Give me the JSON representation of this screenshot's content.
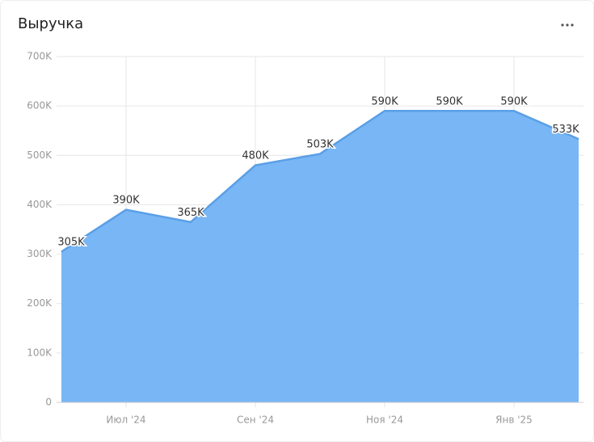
{
  "chart_data": {
    "type": "area",
    "title": "Выручка",
    "categories": [
      null,
      "Июл '24",
      null,
      "Сен '24",
      null,
      "Ноя '24",
      null,
      "Янв '25",
      null
    ],
    "values": [
      305000,
      390000,
      365000,
      480000,
      503000,
      590000,
      590000,
      590000,
      533000
    ],
    "value_labels": [
      "305K",
      "390K",
      "365K",
      "480K",
      "503K",
      "590K",
      "590K",
      "590K",
      "533K"
    ],
    "color": "#78b6f5",
    "ylim": [
      0,
      700000
    ],
    "yticks": [
      0,
      {
        "value": 100000,
        "label": "100K"
      },
      {
        "value": 200000,
        "label": "200K"
      },
      {
        "value": 300000,
        "label": "300K"
      },
      {
        "value": 400000,
        "label": "400K"
      },
      {
        "value": 500000,
        "label": "500K"
      },
      {
        "value": 600000,
        "label": "600K"
      },
      {
        "value": 700000,
        "label": "700K"
      }
    ],
    "grid": true
  }
}
